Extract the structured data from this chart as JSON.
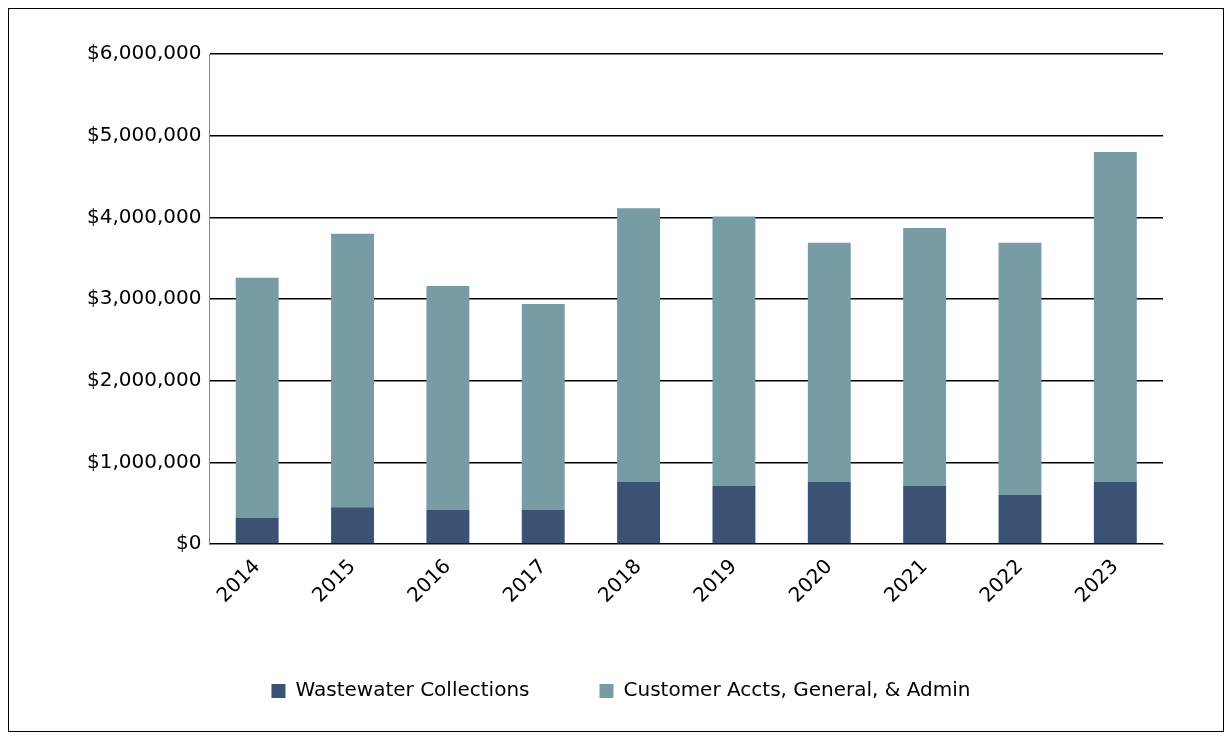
{
  "chart_data": {
    "type": "bar",
    "stacked": true,
    "categories": [
      "2014",
      "2015",
      "2016",
      "2017",
      "2018",
      "2019",
      "2020",
      "2021",
      "2022",
      "2023"
    ],
    "series": [
      {
        "name": "Wastewater Collections",
        "color": "#3b5275",
        "values": [
          320000,
          450000,
          420000,
          420000,
          760000,
          710000,
          760000,
          710000,
          600000,
          760000
        ]
      },
      {
        "name": "Customer Accts, General, & Admin",
        "color": "#779ca3",
        "values": [
          2940000,
          3350000,
          2740000,
          2520000,
          3350000,
          3300000,
          2930000,
          3160000,
          3090000,
          4040000
        ]
      }
    ],
    "ylim": [
      0,
      6000000
    ],
    "yticks": [
      {
        "value": 0,
        "label": "$0"
      },
      {
        "value": 1000000,
        "label": "$1,000,000"
      },
      {
        "value": 2000000,
        "label": "$2,000,000"
      },
      {
        "value": 3000000,
        "label": "$3,000,000"
      },
      {
        "value": 4000000,
        "label": "$4,000,000"
      },
      {
        "value": 5000000,
        "label": "$5,000,000"
      },
      {
        "value": 6000000,
        "label": "$6,000,000"
      }
    ],
    "grid": "y",
    "legend": "bottom"
  }
}
